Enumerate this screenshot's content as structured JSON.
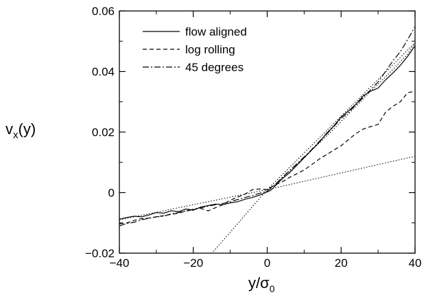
{
  "chart_data": {
    "type": "line",
    "title": "",
    "xlabel": {
      "main": "y/σ",
      "sub": "0"
    },
    "ylabel": {
      "main": "v",
      "sub": "x",
      "suffix": "(y)"
    },
    "xlim": [
      -40,
      40
    ],
    "ylim": [
      -0.02,
      0.06
    ],
    "xticks": [
      {
        "value": -40,
        "label": "−40"
      },
      {
        "value": -20,
        "label": "−20"
      },
      {
        "value": 0,
        "label": "0"
      },
      {
        "value": 20,
        "label": "20"
      },
      {
        "value": 40,
        "label": "40"
      }
    ],
    "yticks": [
      {
        "value": -0.02,
        "label": "−0.02"
      },
      {
        "value": 0,
        "label": "0"
      },
      {
        "value": 0.02,
        "label": "0.02"
      },
      {
        "value": 0.04,
        "label": "0.04"
      },
      {
        "value": 0.06,
        "label": "0.06"
      }
    ],
    "grid": false,
    "legend_position": "top-left",
    "series": [
      {
        "name": "flow aligned",
        "style": "solid",
        "in_legend": true,
        "points": [
          [
            -40,
            -0.0088
          ],
          [
            -38,
            -0.0082
          ],
          [
            -36,
            -0.0078
          ],
          [
            -34,
            -0.008
          ],
          [
            -32,
            -0.0074
          ],
          [
            -30,
            -0.0066
          ],
          [
            -28,
            -0.0068
          ],
          [
            -26,
            -0.006
          ],
          [
            -24,
            -0.0063
          ],
          [
            -22,
            -0.0054
          ],
          [
            -20,
            -0.0058
          ],
          [
            -18,
            -0.0048
          ],
          [
            -16,
            -0.0043
          ],
          [
            -14,
            -0.0038
          ],
          [
            -12,
            -0.004
          ],
          [
            -10,
            -0.0034
          ],
          [
            -8,
            -0.003
          ],
          [
            -6,
            -0.0022
          ],
          [
            -4,
            -0.0016
          ],
          [
            -2,
            -0.0008
          ],
          [
            0,
            0.0002
          ],
          [
            1,
            0.0008
          ],
          [
            2,
            0.002
          ],
          [
            4,
            0.0045
          ],
          [
            6,
            0.0065
          ],
          [
            8,
            0.009
          ],
          [
            10,
            0.0115
          ],
          [
            12,
            0.014
          ],
          [
            14,
            0.0165
          ],
          [
            16,
            0.0195
          ],
          [
            18,
            0.022
          ],
          [
            20,
            0.025
          ],
          [
            22,
            0.027
          ],
          [
            24,
            0.0292
          ],
          [
            26,
            0.032
          ],
          [
            28,
            0.0335
          ],
          [
            30,
            0.0345
          ],
          [
            32,
            0.0372
          ],
          [
            34,
            0.0395
          ],
          [
            36,
            0.042
          ],
          [
            38,
            0.045
          ],
          [
            40,
            0.0485
          ]
        ]
      },
      {
        "name": "log rolling",
        "style": "dashed",
        "in_legend": true,
        "points": [
          [
            -40,
            -0.0103
          ],
          [
            -38,
            -0.01
          ],
          [
            -36,
            -0.0092
          ],
          [
            -34,
            -0.0086
          ],
          [
            -32,
            -0.0084
          ],
          [
            -30,
            -0.008
          ],
          [
            -28,
            -0.0076
          ],
          [
            -26,
            -0.0072
          ],
          [
            -24,
            -0.0068
          ],
          [
            -22,
            -0.0061
          ],
          [
            -20,
            -0.0056
          ],
          [
            -18,
            -0.0052
          ],
          [
            -16,
            -0.006
          ],
          [
            -14,
            -0.005
          ],
          [
            -12,
            -0.004
          ],
          [
            -10,
            -0.0025
          ],
          [
            -8,
            -0.0015
          ],
          [
            -6,
            -0.0005
          ],
          [
            -4,
            0.001
          ],
          [
            -2,
            0.0012
          ],
          [
            0,
            0.001
          ],
          [
            2,
            0.0025
          ],
          [
            4,
            0.0035
          ],
          [
            6,
            0.005
          ],
          [
            8,
            0.0062
          ],
          [
            10,
            0.0075
          ],
          [
            12,
            0.0092
          ],
          [
            14,
            0.011
          ],
          [
            16,
            0.0125
          ],
          [
            18,
            0.014
          ],
          [
            20,
            0.0155
          ],
          [
            22,
            0.0175
          ],
          [
            24,
            0.0195
          ],
          [
            26,
            0.021
          ],
          [
            28,
            0.0218
          ],
          [
            30,
            0.0225
          ],
          [
            32,
            0.0265
          ],
          [
            34,
            0.0285
          ],
          [
            36,
            0.03
          ],
          [
            38,
            0.033
          ],
          [
            40,
            0.0335
          ]
        ]
      },
      {
        "name": "45 degrees",
        "style": "dashdot",
        "in_legend": true,
        "points": [
          [
            -40,
            -0.011
          ],
          [
            -38,
            -0.0102
          ],
          [
            -36,
            -0.0098
          ],
          [
            -34,
            -0.009
          ],
          [
            -32,
            -0.0085
          ],
          [
            -30,
            -0.008
          ],
          [
            -28,
            -0.0078
          ],
          [
            -26,
            -0.007
          ],
          [
            -24,
            -0.0066
          ],
          [
            -22,
            -0.006
          ],
          [
            -20,
            -0.0055
          ],
          [
            -18,
            -0.005
          ],
          [
            -16,
            -0.0045
          ],
          [
            -14,
            -0.004
          ],
          [
            -12,
            -0.0036
          ],
          [
            -10,
            -0.003
          ],
          [
            -8,
            -0.0023
          ],
          [
            -6,
            -0.0016
          ],
          [
            -4,
            -0.001
          ],
          [
            -2,
            -0.0002
          ],
          [
            0,
            0.0005
          ],
          [
            2,
            0.0025
          ],
          [
            4,
            0.005
          ],
          [
            6,
            0.0072
          ],
          [
            8,
            0.0095
          ],
          [
            10,
            0.0118
          ],
          [
            12,
            0.0142
          ],
          [
            14,
            0.0168
          ],
          [
            16,
            0.0192
          ],
          [
            18,
            0.0218
          ],
          [
            20,
            0.0245
          ],
          [
            22,
            0.0265
          ],
          [
            24,
            0.029
          ],
          [
            26,
            0.0315
          ],
          [
            28,
            0.034
          ],
          [
            30,
            0.0365
          ],
          [
            32,
            0.04
          ],
          [
            34,
            0.0435
          ],
          [
            36,
            0.0465
          ],
          [
            38,
            0.0505
          ],
          [
            40,
            0.0548
          ]
        ]
      },
      {
        "name": "",
        "style": "dotted",
        "in_legend": false,
        "points": [
          [
            -40,
            -0.009
          ],
          [
            -38,
            -0.0085
          ],
          [
            -36,
            -0.008
          ],
          [
            -34,
            -0.0075
          ],
          [
            -32,
            -0.007
          ],
          [
            -30,
            -0.0065
          ],
          [
            -28,
            -0.006
          ],
          [
            -26,
            -0.0055
          ],
          [
            -24,
            -0.005
          ],
          [
            -22,
            -0.0045
          ],
          [
            -20,
            -0.004
          ],
          [
            -18,
            -0.0035
          ],
          [
            -16,
            -0.003
          ],
          [
            -14,
            -0.0025
          ],
          [
            -12,
            -0.002
          ],
          [
            -10,
            -0.0015
          ],
          [
            -8,
            -0.001
          ],
          [
            -6,
            -0.0005
          ],
          [
            -4,
            0.0
          ],
          [
            -2,
            0.0005
          ],
          [
            0,
            0.001
          ],
          [
            2,
            0.0025
          ],
          [
            4,
            0.0048
          ],
          [
            6,
            0.007
          ],
          [
            8,
            0.0093
          ],
          [
            10,
            0.0116
          ],
          [
            12,
            0.014
          ],
          [
            14,
            0.0163
          ],
          [
            16,
            0.0186
          ],
          [
            18,
            0.021
          ],
          [
            20,
            0.0235
          ],
          [
            22,
            0.026
          ],
          [
            24,
            0.0285
          ],
          [
            26,
            0.031
          ],
          [
            28,
            0.0335
          ],
          [
            30,
            0.0358
          ],
          [
            32,
            0.0382
          ],
          [
            34,
            0.0407
          ],
          [
            36,
            0.0432
          ],
          [
            38,
            0.0457
          ],
          [
            40,
            0.0495
          ]
        ]
      },
      {
        "name": "",
        "style": "dotted",
        "in_legend": false,
        "points": [
          [
            -16,
            -0.0215
          ],
          [
            0,
            0.001
          ],
          [
            40,
            0.0495
          ]
        ]
      },
      {
        "name": "",
        "style": "dotted",
        "in_legend": false,
        "points": [
          [
            0,
            0.001
          ],
          [
            40,
            0.012
          ]
        ]
      }
    ]
  }
}
